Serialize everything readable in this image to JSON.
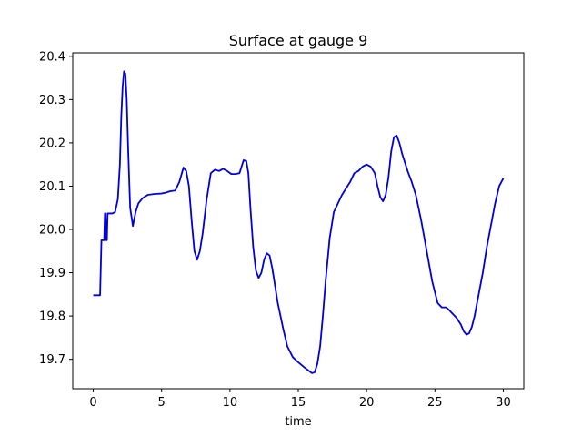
{
  "chart_data": {
    "type": "line",
    "title": "Surface at gauge 9",
    "xlabel": "time",
    "ylabel": "",
    "xlim": [
      -1.5,
      31.5
    ],
    "ylim": [
      19.632,
      20.408
    ],
    "xticks": [
      0,
      5,
      10,
      15,
      20,
      25,
      30
    ],
    "yticks": [
      19.7,
      19.8,
      19.9,
      20.0,
      20.1,
      20.2,
      20.3,
      20.4
    ],
    "xtick_labels": [
      "0",
      "5",
      "10",
      "15",
      "20",
      "25",
      "30"
    ],
    "ytick_labels": [
      "19.7",
      "19.8",
      "19.9",
      "20.0",
      "20.1",
      "20.2",
      "20.3",
      "20.4"
    ],
    "grid": false,
    "colors": {
      "line": "#0000dd",
      "axes": "#000000"
    },
    "series": [
      {
        "x": [
          0.0,
          0.5,
          0.6,
          0.7,
          0.8,
          0.85,
          0.9,
          0.95,
          1.0,
          1.05,
          1.1,
          1.15,
          1.2,
          1.4,
          1.6,
          1.8,
          1.95,
          2.05,
          2.15,
          2.25,
          2.35,
          2.45,
          2.55,
          2.7,
          2.9,
          3.1,
          3.3,
          3.6,
          4.0,
          4.5,
          5.0,
          5.3,
          5.6,
          6.0,
          6.3,
          6.6,
          6.8,
          7.0,
          7.2,
          7.4,
          7.6,
          7.8,
          8.0,
          8.3,
          8.6,
          8.9,
          9.2,
          9.5,
          9.8,
          10.1,
          10.4,
          10.7,
          11.0,
          11.2,
          11.35,
          11.5,
          11.7,
          11.9,
          12.1,
          12.3,
          12.5,
          12.7,
          12.9,
          13.1,
          13.3,
          13.5,
          13.7,
          13.9,
          14.2,
          14.6,
          15.0,
          15.5,
          16.0,
          16.2,
          16.4,
          16.6,
          16.8,
          17.0,
          17.3,
          17.6,
          17.9,
          18.2,
          18.5,
          18.8,
          19.1,
          19.4,
          19.7,
          20.0,
          20.3,
          20.6,
          20.8,
          21.0,
          21.2,
          21.4,
          21.6,
          21.8,
          22.0,
          22.2,
          22.4,
          22.6,
          22.8,
          23.0,
          23.3,
          23.6,
          24.0,
          24.4,
          24.8,
          25.2,
          25.5,
          25.8,
          26.0,
          26.3,
          26.6,
          26.9,
          27.1,
          27.3,
          27.5,
          27.7,
          27.9,
          28.2,
          28.5,
          28.8,
          29.1,
          29.4,
          29.7,
          30.0
        ],
        "y": [
          19.848,
          19.848,
          19.975,
          19.975,
          19.975,
          20.037,
          20.037,
          19.975,
          19.975,
          20.037,
          20.037,
          20.037,
          20.037,
          20.037,
          20.04,
          20.07,
          20.15,
          20.26,
          20.33,
          20.365,
          20.36,
          20.3,
          20.19,
          20.05,
          20.008,
          20.04,
          20.06,
          20.072,
          20.08,
          20.082,
          20.083,
          20.085,
          20.088,
          20.09,
          20.11,
          20.143,
          20.135,
          20.1,
          20.02,
          19.95,
          19.93,
          19.95,
          19.99,
          20.07,
          20.13,
          20.138,
          20.135,
          20.14,
          20.135,
          20.128,
          20.128,
          20.13,
          20.16,
          20.158,
          20.13,
          20.05,
          19.96,
          19.905,
          19.888,
          19.9,
          19.93,
          19.945,
          19.94,
          19.91,
          19.87,
          19.83,
          19.8,
          19.77,
          19.73,
          19.705,
          19.693,
          19.68,
          19.668,
          19.67,
          19.69,
          19.73,
          19.8,
          19.88,
          19.98,
          20.04,
          20.06,
          20.08,
          20.095,
          20.11,
          20.13,
          20.135,
          20.145,
          20.15,
          20.145,
          20.13,
          20.1,
          20.075,
          20.065,
          20.08,
          20.12,
          20.18,
          20.213,
          20.217,
          20.2,
          20.175,
          20.155,
          20.135,
          20.11,
          20.08,
          20.02,
          19.95,
          19.88,
          19.83,
          19.82,
          19.82,
          19.815,
          19.805,
          19.795,
          19.78,
          19.765,
          19.757,
          19.76,
          19.775,
          19.8,
          19.85,
          19.9,
          19.96,
          20.01,
          20.06,
          20.1,
          20.118
        ]
      }
    ]
  }
}
